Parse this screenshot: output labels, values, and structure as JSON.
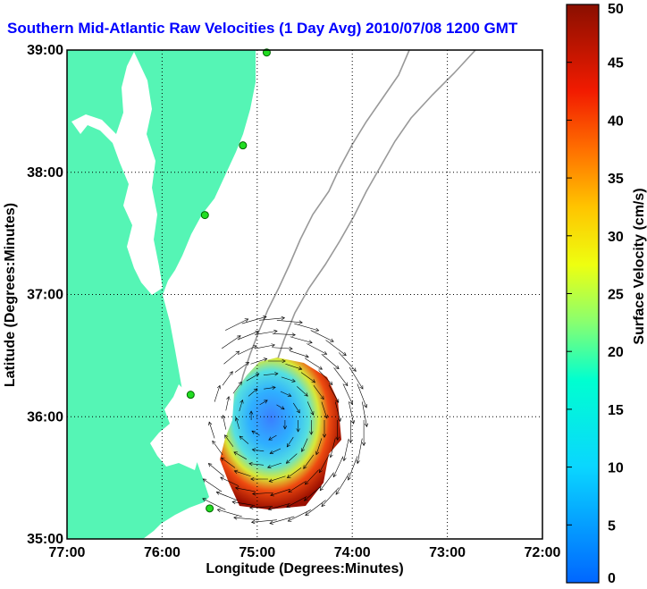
{
  "chart_data": {
    "type": "map",
    "title": "Southern Mid-Atlantic Raw Velocities (1 Day Avg) 2010/07/08 1200 GMT",
    "xlabel": "Longitude (Degrees:Minutes)",
    "ylabel": "Latitude (Degrees:Minutes)",
    "xlim": [
      -77,
      -72
    ],
    "ylim": [
      35,
      39
    ],
    "x_ticks": [
      -77,
      -76,
      -75,
      -74,
      -73,
      -72
    ],
    "x_tick_labels": [
      "77:00",
      "76:00",
      "75:00",
      "74:00",
      "73:00",
      "72:00"
    ],
    "y_ticks": [
      35,
      36,
      37,
      38,
      39
    ],
    "y_tick_labels": [
      "35:00",
      "36:00",
      "37:00",
      "38:00",
      "39:00"
    ],
    "grid": true,
    "colorbar": {
      "label": "Surface Velocity (cm/s)",
      "min": 0,
      "max": 50,
      "ticks": [
        0,
        5,
        10,
        15,
        20,
        25,
        30,
        35,
        40,
        45,
        50
      ],
      "tick_labels": [
        "0",
        "5",
        "10",
        "15",
        "20",
        "25",
        "30",
        "35",
        "40",
        "45",
        "50"
      ]
    },
    "stations": [
      {
        "lon": -74.9,
        "lat": 38.98
      },
      {
        "lon": -75.15,
        "lat": 38.22
      },
      {
        "lon": -75.55,
        "lat": 37.65
      },
      {
        "lon": -75.7,
        "lat": 36.18
      },
      {
        "lon": -75.5,
        "lat": 35.25
      }
    ],
    "velocity_field": [
      {
        "lon": -74.78,
        "lat": 35.95,
        "speed": 5
      },
      {
        "lon": -74.95,
        "lat": 36.1,
        "speed": 8
      },
      {
        "lon": -74.62,
        "lat": 36.25,
        "speed": 12
      },
      {
        "lon": -74.5,
        "lat": 36.42,
        "speed": 22
      },
      {
        "lon": -74.25,
        "lat": 36.3,
        "speed": 45
      },
      {
        "lon": -74.18,
        "lat": 36.0,
        "speed": 46
      },
      {
        "lon": -74.45,
        "lat": 35.7,
        "speed": 45
      },
      {
        "lon": -74.7,
        "lat": 35.5,
        "speed": 35
      },
      {
        "lon": -74.95,
        "lat": 35.35,
        "speed": 30
      },
      {
        "lon": -75.1,
        "lat": 35.75,
        "speed": 13
      }
    ]
  }
}
